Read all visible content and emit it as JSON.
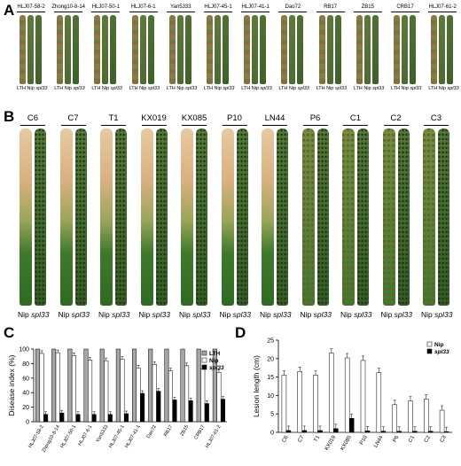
{
  "panels": {
    "a": "A",
    "b": "B",
    "c": "C",
    "d": "D"
  },
  "panelA": {
    "isolates": [
      "HLJ07-58-2",
      "Zhong10-8-14",
      "HLJ07-50-1",
      "HLJ07-6-1",
      "Yan5333",
      "HLJ07-45-1",
      "HLJ07-41-1",
      "Dao72",
      "RB17",
      "ZB15",
      "CRB17",
      "HLJ07-61-2"
    ],
    "leaf_labels": {
      "lth": "LTH",
      "nip": "Nip",
      "spl": "spl33"
    }
  },
  "panelB": {
    "races": [
      "C6",
      "C7",
      "T1",
      "KX019",
      "KX085",
      "P10",
      "LN44",
      "P6",
      "C1",
      "C2",
      "C3"
    ],
    "leaf_labels": {
      "nip": "Nip",
      "spl": "spl33"
    }
  },
  "chart_data": [
    {
      "type": "bar",
      "ylabel": "Disease index (%)",
      "ylim": [
        0,
        100
      ],
      "yticks": [
        0,
        20,
        40,
        60,
        80,
        100
      ],
      "legend_position": "top-right",
      "categories": [
        "HLJ07-58-2",
        "Zhong10-8-14",
        "HLJ07-50-1",
        "HLJ07-6-1",
        "Yan5333",
        "HLJ07-45-1",
        "HLJ07-41-1",
        "Dao72",
        "RB17",
        "ZB15",
        "CRB17",
        "HLJ07-61-2"
      ],
      "series": [
        {
          "name": "LTH",
          "color": "#a6a6a6",
          "values": [
            100,
            100,
            100,
            100,
            100,
            100,
            100,
            100,
            100,
            100,
            100,
            100
          ]
        },
        {
          "name": "Nip",
          "color": "#ffffff",
          "values": [
            94,
            95,
            91,
            85,
            84,
            86,
            74,
            79,
            70,
            77,
            73,
            68
          ]
        },
        {
          "name": "spl33",
          "color": "#000000",
          "values": [
            10,
            12,
            10,
            10,
            10,
            11,
            39,
            42,
            30,
            29,
            25,
            31
          ]
        }
      ]
    },
    {
      "type": "bar",
      "ylabel": "Lesion length (cm)",
      "ylim": [
        0,
        25
      ],
      "yticks": [
        0,
        5,
        10,
        15,
        20,
        25
      ],
      "legend_position": "top-right",
      "categories": [
        "C6",
        "C7",
        "T1",
        "KX019",
        "KX085",
        "P10",
        "LN44",
        "P6",
        "C1",
        "C2",
        "C3"
      ],
      "series": [
        {
          "name": "Nip",
          "color": "#ffffff",
          "values": [
            15.5,
            16.5,
            15.5,
            21.5,
            20.2,
            19.5,
            16.2,
            7.5,
            8.5,
            9,
            6
          ]
        },
        {
          "name": "spl33",
          "color": "#000000",
          "values": [
            0.5,
            0.5,
            0.5,
            1.0,
            3.8,
            0.4,
            0.3,
            0.3,
            0.3,
            0.3,
            0.2
          ]
        }
      ]
    }
  ]
}
